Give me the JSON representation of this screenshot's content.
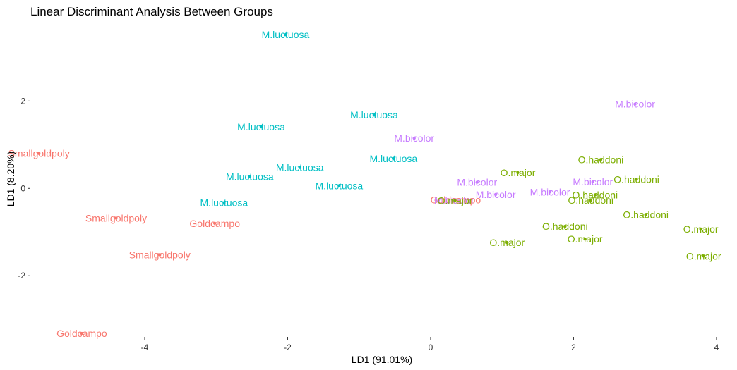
{
  "chart_data": {
    "type": "scatter",
    "title": "Linear Discriminant Analysis Between Groups",
    "xlabel": "LD1 (91.01%)",
    "ylabel": "LD1 (8.20%)",
    "xlim": [
      -5.6,
      4.05
    ],
    "ylim": [
      -3.4,
      3.7
    ],
    "xticks": [
      -4,
      -2,
      0,
      2,
      4
    ],
    "yticks": [
      -2,
      0,
      2
    ],
    "grid": false,
    "legend": "none",
    "colors": {
      "Smallgoldpoly": "#F8766D",
      "Goldcampo": "#F8766D",
      "M.luctuosa": "#00BFC4",
      "M.bicolor": "#C77CFF",
      "O.haddoni": "#7CAE00",
      "O.major": "#7CAE00"
    },
    "series": [
      {
        "name": "Smallgoldpoly",
        "points": [
          {
            "x": -5.48,
            "y": 0.8
          },
          {
            "x": -4.4,
            "y": -0.68
          },
          {
            "x": -3.79,
            "y": -1.52
          }
        ]
      },
      {
        "name": "Goldcampo",
        "points": [
          {
            "x": -3.02,
            "y": -0.8
          },
          {
            "x": -4.88,
            "y": -3.32
          },
          {
            "x": 0.35,
            "y": -0.26
          }
        ]
      },
      {
        "name": "M.luctuosa",
        "points": [
          {
            "x": -2.03,
            "y": 3.52
          },
          {
            "x": -0.79,
            "y": 1.68
          },
          {
            "x": -2.37,
            "y": 1.41
          },
          {
            "x": -0.52,
            "y": 0.68
          },
          {
            "x": -1.83,
            "y": 0.48
          },
          {
            "x": -2.53,
            "y": 0.27
          },
          {
            "x": -1.28,
            "y": 0.06
          },
          {
            "x": -2.89,
            "y": -0.33
          }
        ]
      },
      {
        "name": "M.bicolor",
        "points": [
          {
            "x": 2.86,
            "y": 1.93
          },
          {
            "x": -0.23,
            "y": 1.15
          },
          {
            "x": 0.65,
            "y": 0.14
          },
          {
            "x": 2.27,
            "y": 0.15
          },
          {
            "x": 0.91,
            "y": -0.14
          },
          {
            "x": 1.67,
            "y": -0.08
          },
          {
            "x": 0.33,
            "y": -0.27
          }
        ]
      },
      {
        "name": "O.haddoni",
        "points": [
          {
            "x": 2.38,
            "y": 0.66
          },
          {
            "x": 2.88,
            "y": 0.21
          },
          {
            "x": 2.3,
            "y": -0.15
          },
          {
            "x": 2.24,
            "y": -0.27
          },
          {
            "x": 3.01,
            "y": -0.6
          },
          {
            "x": 1.88,
            "y": -0.87
          }
        ]
      },
      {
        "name": "O.major",
        "points": [
          {
            "x": 1.22,
            "y": 0.36
          },
          {
            "x": 0.34,
            "y": -0.28
          },
          {
            "x": 3.78,
            "y": -0.93
          },
          {
            "x": 2.16,
            "y": -1.16
          },
          {
            "x": 1.07,
            "y": -1.24
          },
          {
            "x": 3.82,
            "y": -1.55
          }
        ]
      }
    ]
  }
}
